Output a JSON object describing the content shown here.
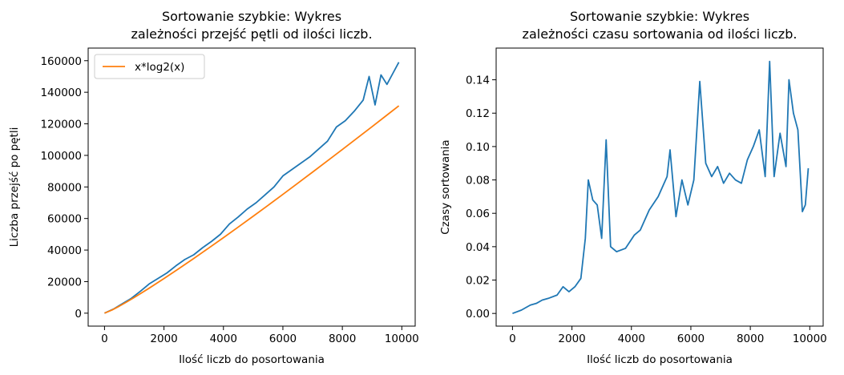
{
  "chart_data": [
    {
      "type": "line",
      "title": [
        "Sortowanie szybkie: Wykres",
        "zależności przejść  pętli od ilości liczb."
      ],
      "xlabel": "Ilość liczb do posortowania",
      "ylabel": "Liczba przejść po pętli",
      "xlim": [
        -550,
        10450
      ],
      "ylim": [
        -8200,
        168000
      ],
      "xticks": [
        0,
        2000,
        4000,
        6000,
        8000,
        10000
      ],
      "xtick_labels": [
        "0",
        "2000",
        "4000",
        "6000",
        "8000",
        "10000"
      ],
      "yticks": [
        0,
        20000,
        40000,
        60000,
        80000,
        100000,
        120000,
        140000,
        160000
      ],
      "ytick_labels": [
        "0",
        "20000",
        "40000",
        "60000",
        "80000",
        "100000",
        "120000",
        "140000",
        "160000"
      ],
      "legend": {
        "position": "top-left",
        "entries": [
          "x*log2(x)"
        ]
      },
      "grid": false,
      "series": [
        {
          "color": "#1f77b4",
          "x": [
            0,
            300,
            600,
            900,
            1200,
            1500,
            1800,
            2100,
            2400,
            2700,
            3000,
            3300,
            3600,
            3900,
            4200,
            4500,
            4800,
            5100,
            5400,
            5700,
            6000,
            6300,
            6600,
            6900,
            7200,
            7500,
            7800,
            8100,
            8400,
            8700,
            8900,
            9100,
            9300,
            9500,
            9700,
            9900
          ],
          "y": [
            0,
            2600,
            6000,
            9400,
            13800,
            18500,
            22000,
            25500,
            30000,
            34000,
            37000,
            41500,
            45500,
            50000,
            56500,
            61000,
            66000,
            70000,
            75000,
            80000,
            87000,
            91000,
            95000,
            99000,
            104000,
            109000,
            118000,
            122000,
            128000,
            135000,
            150000,
            132000,
            151000,
            145000,
            152000,
            159000
          ]
        },
        {
          "name": "x*log2(x)",
          "color": "#ff7f0e",
          "x": [
            1,
            250,
            500,
            750,
            1000,
            1500,
            2000,
            2500,
            3000,
            3500,
            4000,
            4500,
            5000,
            5500,
            6000,
            6500,
            7000,
            7500,
            8000,
            8500,
            9000,
            9500,
            9900
          ],
          "y": [
            0,
            1990,
            4483,
            7165,
            9966,
            15826,
            21932,
            28219,
            34652,
            41210,
            47863,
            54600,
            61439,
            68330,
            75304,
            82341,
            89413,
            96563,
            103726,
            110955,
            118223,
            125532,
            131410
          ]
        }
      ]
    },
    {
      "type": "line",
      "title": [
        "Sortowanie szybkie: Wykres",
        "zależności czasu sortowania od ilości liczb."
      ],
      "xlabel": "Ilość liczb do posortowania",
      "ylabel": "Czasy sortowania",
      "xlim": [
        -550,
        10450
      ],
      "ylim": [
        -0.0076,
        0.159
      ],
      "xticks": [
        0,
        2000,
        4000,
        6000,
        8000,
        10000
      ],
      "xtick_labels": [
        "0",
        "2000",
        "4000",
        "6000",
        "8000",
        "10000"
      ],
      "yticks": [
        0.0,
        0.02,
        0.04,
        0.06,
        0.08,
        0.1,
        0.12,
        0.14
      ],
      "ytick_labels": [
        "0.00",
        "0.02",
        "0.04",
        "0.06",
        "0.08",
        "0.10",
        "0.12",
        "0.14"
      ],
      "grid": false,
      "series": [
        {
          "color": "#1f77b4",
          "x": [
            0,
            300,
            600,
            800,
            1000,
            1200,
            1500,
            1700,
            1900,
            2100,
            2300,
            2450,
            2550,
            2700,
            2850,
            3000,
            3150,
            3300,
            3500,
            3800,
            4100,
            4300,
            4600,
            4900,
            5200,
            5300,
            5500,
            5700,
            5900,
            6100,
            6300,
            6500,
            6700,
            6900,
            7100,
            7300,
            7500,
            7700,
            7900,
            8100,
            8300,
            8500,
            8650,
            8800,
            9000,
            9200,
            9300,
            9450,
            9600,
            9750,
            9850,
            9950
          ],
          "y": [
            0.0,
            0.002,
            0.005,
            0.006,
            0.008,
            0.009,
            0.011,
            0.016,
            0.013,
            0.016,
            0.021,
            0.045,
            0.08,
            0.068,
            0.065,
            0.045,
            0.104,
            0.04,
            0.037,
            0.039,
            0.047,
            0.05,
            0.062,
            0.07,
            0.082,
            0.098,
            0.058,
            0.08,
            0.065,
            0.08,
            0.139,
            0.09,
            0.082,
            0.088,
            0.078,
            0.084,
            0.08,
            0.078,
            0.092,
            0.1,
            0.11,
            0.082,
            0.151,
            0.082,
            0.108,
            0.088,
            0.14,
            0.12,
            0.11,
            0.061,
            0.065,
            0.087
          ]
        }
      ]
    }
  ]
}
